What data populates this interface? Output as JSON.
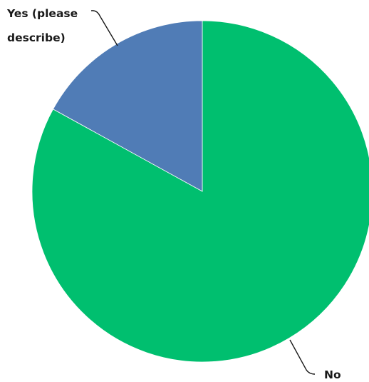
{
  "chart_data": {
    "type": "pie",
    "slices": [
      {
        "label": "No",
        "value": 83,
        "color": "#00bf6f"
      },
      {
        "label": "Yes (please describe)",
        "value": 17,
        "color": "#507cb6"
      }
    ],
    "labels": {
      "no": "No",
      "yes_line1": "Yes (please",
      "yes_line2": "describe)"
    }
  }
}
